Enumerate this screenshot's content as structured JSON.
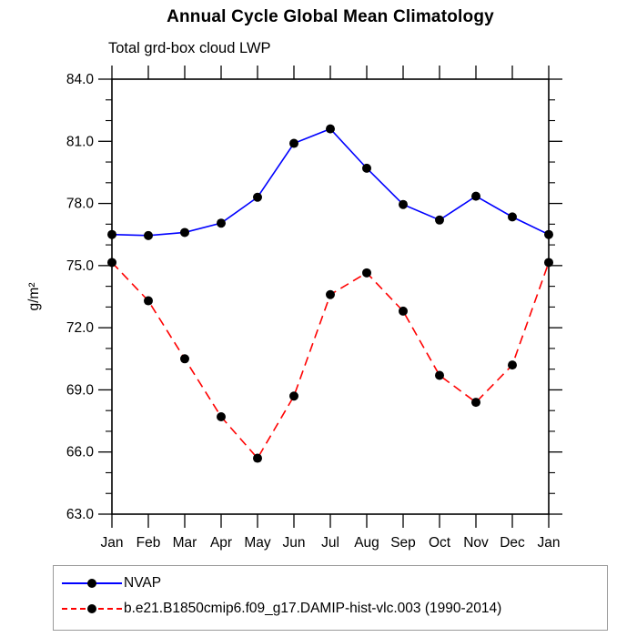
{
  "window": {
    "title": "Annual Cycle Global Mean Climatology"
  },
  "chart_data": {
    "type": "line",
    "title": "Annual Cycle Global Mean Climatology",
    "subtitle": "Total grd-box cloud LWP",
    "ylabel": "g/m²",
    "xlabel": "",
    "categories": [
      "Jan",
      "Feb",
      "Mar",
      "Apr",
      "May",
      "Jun",
      "Jul",
      "Aug",
      "Sep",
      "Oct",
      "Nov",
      "Dec",
      "Jan"
    ],
    "ylim": [
      63.0,
      84.0
    ],
    "y_major_step": 3.0,
    "y_minor_step": 1.0,
    "y_tick_label_format": "one-decimal",
    "grid": false,
    "axis_color": "#000000",
    "marker_color": "#000000",
    "legend_position": "bottom-left-box",
    "series": [
      {
        "name": "NVAP",
        "color": "#0000ff",
        "line_style": "solid",
        "marker": "filled-circle",
        "values": [
          76.5,
          76.45,
          76.6,
          77.05,
          78.3,
          80.9,
          81.6,
          79.7,
          77.95,
          77.2,
          78.35,
          77.35,
          76.5
        ]
      },
      {
        "name": "b.e21.B1850cmip6.f09_g17.DAMIP-hist-vlc.003 (1990-2014)",
        "color": "#ff0000",
        "line_style": "dashed",
        "marker": "filled-circle",
        "values": [
          75.15,
          73.3,
          70.5,
          67.7,
          65.7,
          68.7,
          73.6,
          74.65,
          72.8,
          69.7,
          68.4,
          70.2,
          75.15
        ]
      }
    ]
  }
}
